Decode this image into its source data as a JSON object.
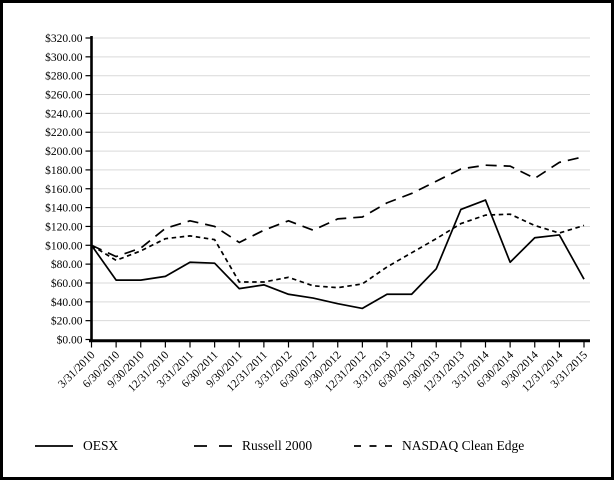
{
  "chart_data": {
    "type": "line",
    "title": "",
    "xlabel": "",
    "ylabel": "",
    "ylim": [
      0,
      320
    ],
    "ytick_step": 20,
    "ytick_labels": [
      "$0.00",
      "$20.00",
      "$40.00",
      "$60.00",
      "$80.00",
      "$100.00",
      "$120.00",
      "$140.00",
      "$160.00",
      "$180.00",
      "$200.00",
      "$220.00",
      "$240.00",
      "$260.00",
      "$280.00",
      "$300.00",
      "$320.00"
    ],
    "grid": "horizontal",
    "grid_color": "#d9d9d9",
    "line_color": "#000000",
    "legend_position": "bottom",
    "categories": [
      "3/31/2010",
      "6/30/2010",
      "9/30/2010",
      "12/31/2010",
      "3/31/2011",
      "6/30/2011",
      "9/30/2011",
      "12/31/2011",
      "3/31/2012",
      "6/30/2012",
      "9/30/2012",
      "12/31/2012",
      "3/31/2013",
      "6/30/2013",
      "9/30/2013",
      "12/31/2013",
      "3/31/2014",
      "6/30/2014",
      "9/30/2014",
      "12/31/2014",
      "3/31/2015"
    ],
    "series": [
      {
        "name": "OESX",
        "style": "solid",
        "values": [
          100,
          63,
          63,
          67,
          82,
          81,
          54,
          58,
          48,
          44,
          38,
          33,
          48,
          48,
          75,
          138,
          148,
          82,
          108,
          111,
          64
        ]
      },
      {
        "name": "Russell 2000",
        "style": "long-dash",
        "values": [
          100,
          88,
          97,
          118,
          126,
          120,
          103,
          116,
          126,
          116,
          128,
          130,
          145,
          155,
          168,
          181,
          185,
          184,
          171,
          188,
          194
        ]
      },
      {
        "name": "NASDAQ Clean Edge",
        "style": "short-dash",
        "values": [
          100,
          84,
          94,
          107,
          110,
          106,
          61,
          61,
          66,
          57,
          55,
          59,
          77,
          92,
          107,
          123,
          132,
          133,
          121,
          113,
          121
        ]
      }
    ]
  }
}
